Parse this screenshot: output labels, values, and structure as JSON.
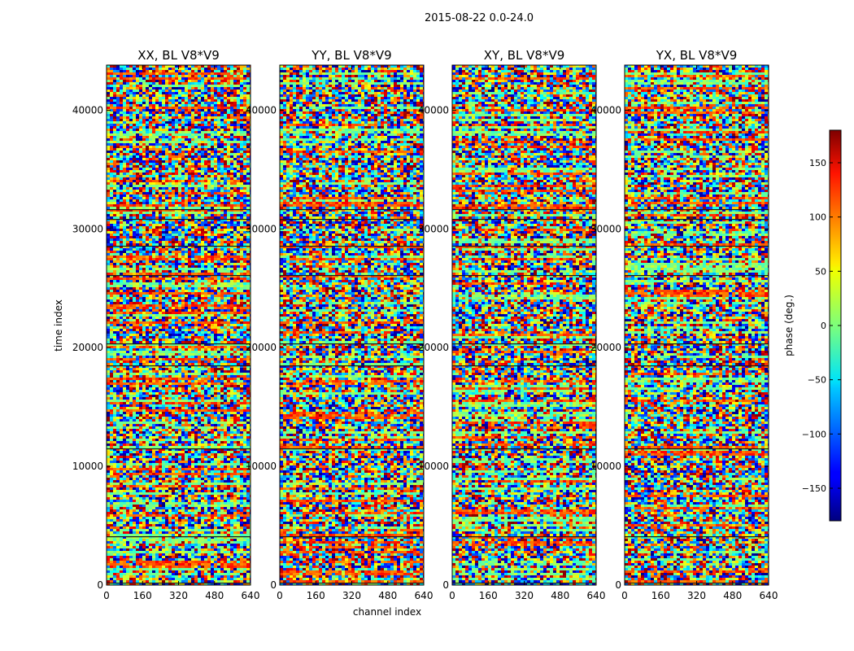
{
  "suptitle": "2015-08-22 0.0-24.0",
  "chart_data": {
    "type": "heatmap",
    "xlabel": "channel index",
    "ylabel": "time index",
    "xlim": [
      0,
      640
    ],
    "ylim": [
      0,
      43800
    ],
    "x_ticks": [
      0,
      160,
      320,
      480,
      640
    ],
    "y_ticks": [
      0,
      10000,
      20000,
      30000,
      40000
    ],
    "panels": [
      {
        "title": "XX, BL V8*V9"
      },
      {
        "title": "YY, BL V8*V9"
      },
      {
        "title": "XY, BL V8*V9"
      },
      {
        "title": "YX, BL V8*V9"
      }
    ],
    "colorbar": {
      "label": "phase (deg.)",
      "range": [
        -180,
        180
      ],
      "ticks": [
        -150,
        -100,
        -50,
        0,
        50,
        100,
        150
      ],
      "colormap": "jet"
    }
  },
  "colors": {
    "axis": "#000000",
    "background": "#ffffff",
    "gap_line": "#1a1a1a"
  }
}
